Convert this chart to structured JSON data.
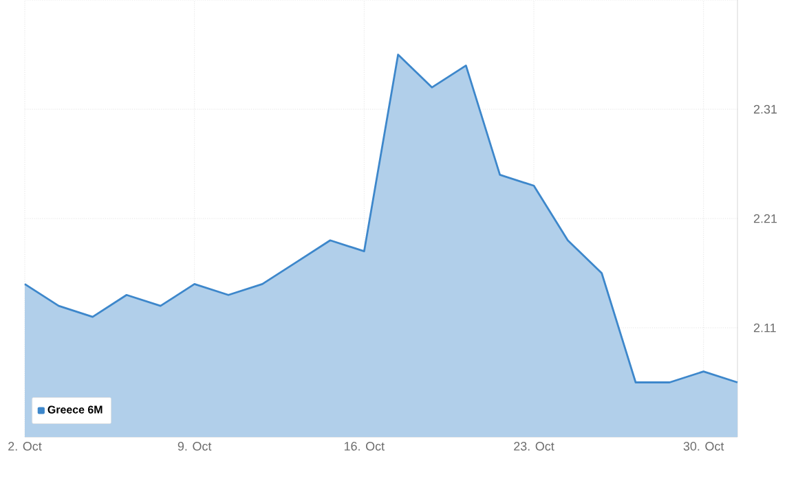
{
  "chart_data": {
    "type": "area",
    "categories": [
      "2. Oct",
      null,
      null,
      null,
      null,
      "9. Oct",
      null,
      null,
      null,
      null,
      "16. Oct",
      null,
      null,
      null,
      null,
      "23. Oct",
      null,
      null,
      null,
      null,
      "30. Oct",
      null
    ],
    "series": [
      {
        "name": "Greece 6M",
        "color": "#3d87cb",
        "values": [
          2.15,
          2.13,
          2.12,
          2.14,
          2.13,
          2.15,
          2.14,
          2.15,
          2.17,
          2.19,
          2.18,
          2.36,
          2.33,
          2.35,
          2.25,
          2.24,
          2.19,
          2.16,
          2.06,
          2.06,
          2.07,
          2.06
        ]
      }
    ],
    "ylim": [
      2.01,
      2.41
    ],
    "yticks": [
      2.11,
      2.21,
      2.31,
      {
        "value": 2.41,
        "label": null
      }
    ],
    "grid": true,
    "legend": "bottom left"
  }
}
